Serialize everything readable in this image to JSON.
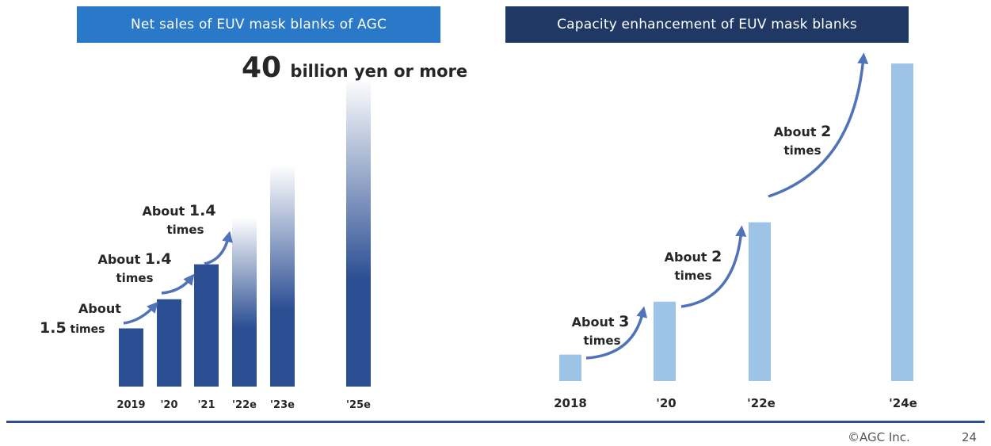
{
  "colors": {
    "left_header": "#2a78c8",
    "right_header": "#1f3864",
    "left_bar": "#2c4f93",
    "right_bar": "#9dc3e6",
    "arrow": "#4f72b8",
    "axis_text": "#262626",
    "rule": "#2c4f93"
  },
  "footer": {
    "copyright": "©AGC Inc.",
    "page": "24"
  },
  "chart_data": [
    {
      "type": "bar",
      "title": "Net sales of EUV mask blanks of AGC",
      "categories": [
        "2019",
        "'20",
        "'21",
        "'22e",
        "'23e",
        "'25e"
      ],
      "values": [
        1.0,
        1.5,
        2.1,
        2.9,
        3.8,
        5.3
      ],
      "faded_top": [
        false,
        false,
        false,
        true,
        true,
        true
      ],
      "top_annotation": {
        "number": "40",
        "text": "billion yen or more"
      },
      "growth_labels": [
        {
          "pre": "About",
          "num": "1.5",
          "post": "times"
        },
        {
          "pre": "About",
          "num": "1.4",
          "post": "times"
        },
        {
          "pre": "About",
          "num": "1.4",
          "post": "times"
        }
      ]
    },
    {
      "type": "bar",
      "title": "Capacity enhancement of EUV mask blanks",
      "categories": [
        "2018",
        "'20",
        "'22e",
        "'24e"
      ],
      "values": [
        1,
        3,
        6,
        12
      ],
      "growth_labels": [
        {
          "pre": "About",
          "num": "3",
          "post": "times"
        },
        {
          "pre": "About",
          "num": "2",
          "post": "times"
        },
        {
          "pre": "About",
          "num": "2",
          "post": "times"
        }
      ]
    }
  ]
}
